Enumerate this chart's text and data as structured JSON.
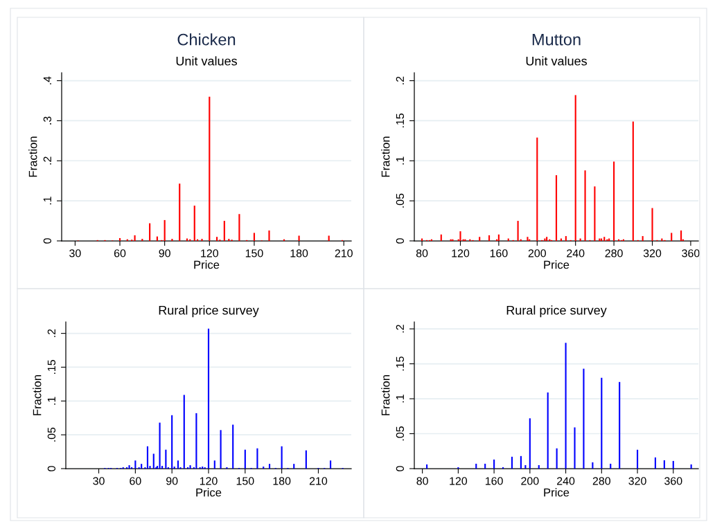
{
  "chart_data": [
    {
      "type": "bar",
      "title": "Chicken",
      "subtitle": "Unit values",
      "xlabel": "Price",
      "ylabel": "Fraction",
      "color": "#ff0000",
      "grid": "y",
      "x": [
        32,
        45,
        50,
        55,
        60,
        65,
        68,
        70,
        75,
        80,
        85,
        88,
        90,
        95,
        100,
        105,
        107,
        110,
        112,
        115,
        120,
        125,
        127,
        130,
        133,
        135,
        140,
        145,
        150,
        155,
        160,
        170,
        180,
        200,
        209
      ],
      "values": [
        0.001,
        0.002,
        0.002,
        0.001,
        0.007,
        0.004,
        0.003,
        0.014,
        0.005,
        0.044,
        0.011,
        0.002,
        0.052,
        0.005,
        0.143,
        0.006,
        0.004,
        0.088,
        0.004,
        0.005,
        0.36,
        0.01,
        0.003,
        0.05,
        0.005,
        0.003,
        0.067,
        0.002,
        0.02,
        0.001,
        0.026,
        0.004,
        0.013,
        0.013,
        0.002
      ],
      "xlim": [
        21,
        215
      ],
      "ylim": [
        0,
        0.42
      ],
      "xticks": [
        30,
        60,
        90,
        120,
        150,
        180,
        210
      ],
      "yticks": [
        0,
        {
          "value": 0.1,
          "label": ".1"
        },
        {
          "value": 0.2,
          "label": ".2"
        },
        {
          "value": 0.3,
          "label": ".3"
        },
        {
          "value": 0.4,
          "label": ".4"
        }
      ]
    },
    {
      "type": "bar",
      "title": "Mutton",
      "subtitle": "Unit values",
      "xlabel": "Price",
      "ylabel": "Fraction",
      "color": "#ff0000",
      "grid": "y",
      "x": [
        80,
        85,
        88,
        90,
        100,
        110,
        112,
        118,
        120,
        123,
        125,
        130,
        133,
        140,
        150,
        158,
        160,
        170,
        175,
        180,
        183,
        190,
        192,
        200,
        205,
        208,
        210,
        213,
        215,
        220,
        225,
        230,
        235,
        240,
        245,
        250,
        255,
        260,
        265,
        267,
        270,
        273,
        275,
        280,
        285,
        288,
        290,
        300,
        305,
        310,
        320,
        325,
        330,
        333,
        340,
        350,
        352
      ],
      "values": [
        0.003,
        0.001,
        0.001,
        0.002,
        0.008,
        0.002,
        0.002,
        0.002,
        0.012,
        0.002,
        0.002,
        0.002,
        0.001,
        0.005,
        0.007,
        0.002,
        0.008,
        0.003,
        0.001,
        0.025,
        0.002,
        0.005,
        0.002,
        0.129,
        0.001,
        0.003,
        0.005,
        0.002,
        0.001,
        0.082,
        0.003,
        0.006,
        0.001,
        0.182,
        0.003,
        0.088,
        0.001,
        0.068,
        0.003,
        0.003,
        0.005,
        0.002,
        0.003,
        0.099,
        0.002,
        0.001,
        0.002,
        0.149,
        0.001,
        0.006,
        0.041,
        0.001,
        0.003,
        0.001,
        0.01,
        0.013,
        0.002
      ],
      "xlim": [
        72,
        368
      ],
      "ylim": [
        0,
        0.21
      ],
      "xticks": [
        80,
        120,
        160,
        200,
        240,
        280,
        320,
        360
      ],
      "yticks": [
        0,
        {
          "value": 0.05,
          "label": ".05"
        },
        {
          "value": 0.1,
          "label": ".1"
        },
        {
          "value": 0.15,
          "label": ".15"
        },
        {
          "value": 0.2,
          "label": ".2"
        }
      ]
    },
    {
      "type": "bar",
      "subtitle": "Rural price survey",
      "xlabel": "Price",
      "ylabel": "Fraction",
      "color": "#0000ff",
      "grid": "y",
      "x": [
        35,
        38,
        40,
        45,
        48,
        50,
        53,
        55,
        57,
        60,
        63,
        65,
        68,
        70,
        72,
        75,
        77,
        78,
        80,
        82,
        85,
        87,
        90,
        92,
        95,
        97,
        100,
        103,
        105,
        108,
        110,
        113,
        115,
        117,
        120,
        125,
        130,
        135,
        140,
        145,
        150,
        155,
        160,
        165,
        170,
        175,
        180,
        185,
        190,
        200,
        210,
        215,
        220,
        230
      ],
      "values": [
        0.001,
        0.001,
        0.001,
        0.001,
        0.001,
        0.002,
        0.002,
        0.005,
        0.002,
        0.012,
        0.002,
        0.007,
        0.002,
        0.033,
        0.004,
        0.022,
        0.002,
        0.004,
        0.068,
        0.004,
        0.028,
        0.002,
        0.079,
        0.003,
        0.012,
        0.002,
        0.109,
        0.002,
        0.005,
        0.002,
        0.082,
        0.002,
        0.003,
        0.002,
        0.207,
        0.012,
        0.057,
        0.002,
        0.065,
        0.001,
        0.028,
        0.001,
        0.03,
        0.003,
        0.007,
        0.001,
        0.033,
        0.001,
        0.007,
        0.027,
        0.001,
        0.001,
        0.012,
        0.001
      ],
      "xlim": [
        3,
        237
      ],
      "ylim": [
        0,
        0.217
      ],
      "xticks": [
        30,
        60,
        90,
        120,
        150,
        180,
        210
      ],
      "yticks": [
        0,
        {
          "value": 0.05,
          "label": ".05"
        },
        {
          "value": 0.1,
          "label": ".1"
        },
        {
          "value": 0.15,
          "label": ".15"
        },
        {
          "value": 0.2,
          "label": ".2"
        }
      ]
    },
    {
      "type": "bar",
      "subtitle": "Rural price survey",
      "xlabel": "Price",
      "ylabel": "Fraction",
      "color": "#0000ff",
      "grid": "y",
      "x": [
        85,
        120,
        140,
        150,
        160,
        170,
        180,
        190,
        195,
        200,
        210,
        220,
        230,
        240,
        250,
        260,
        270,
        280,
        290,
        300,
        320,
        340,
        350,
        360,
        380
      ],
      "values": [
        0.006,
        0.002,
        0.007,
        0.007,
        0.013,
        0.002,
        0.017,
        0.018,
        0.005,
        0.072,
        0.005,
        0.109,
        0.029,
        0.18,
        0.059,
        0.143,
        0.009,
        0.13,
        0.007,
        0.124,
        0.027,
        0.016,
        0.012,
        0.011,
        0.006
      ],
      "xlim": [
        71,
        388
      ],
      "ylim": [
        0,
        0.21
      ],
      "xticks": [
        80,
        120,
        160,
        200,
        240,
        280,
        320,
        360
      ],
      "yticks": [
        0,
        {
          "value": 0.05,
          "label": ".05"
        },
        {
          "value": 0.1,
          "label": ".1"
        },
        {
          "value": 0.15,
          "label": ".15"
        },
        {
          "value": 0.2,
          "label": ".2"
        }
      ]
    }
  ]
}
